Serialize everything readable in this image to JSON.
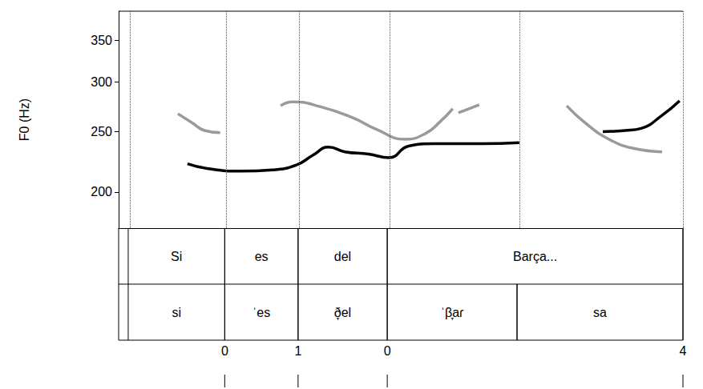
{
  "chart_data": {
    "type": "line",
    "y_label": "F0 (Hz)",
    "xlim": [
      0,
      1
    ],
    "ylim": [
      175,
      390
    ],
    "yticks": [
      200,
      250,
      300,
      350
    ],
    "log": "y",
    "grid": false,
    "tick_labels": "y",
    "series": [
      {
        "color": "#9a9a9a",
        "x": [
          0.105,
          0.131,
          0.152,
          0.18,
          0.23,
          0.287,
          0.308,
          0.358,
          0.415,
          0.457,
          0.507,
          0.543,
          0.571,
          0.592,
          0.597,
          0.602,
          0.621,
          0.639,
          0.713,
          0.794,
          0.827,
          0.869,
          0.912,
          0.963
        ],
        "values": [
          267,
          258,
          251,
          249,
          null,
          275,
          279,
          274,
          263,
          252,
          243,
          248,
          260,
          272,
          null,
          268,
          272,
          276,
          null,
          275,
          258,
          243,
          235,
          232
        ]
      },
      {
        "color": "#000000",
        "x": [
          0.122,
          0.159,
          0.216,
          0.273,
          0.315,
          0.344,
          0.372,
          0.401,
          0.443,
          0.479,
          0.514,
          0.557,
          0.642,
          0.71,
          0.784,
          0.858,
          0.898,
          0.926,
          0.962,
          0.994
        ],
        "values": [
          222,
          218,
          216,
          217,
          221,
          229,
          236,
          232,
          230,
          227,
          237,
          239,
          239,
          240,
          null,
          250,
          251,
          253,
          265,
          280
        ]
      }
    ],
    "tiers": [
      {
        "intervals": [
          {
            "start": 0.017,
            "end": 0.188,
            "text": "Si"
          },
          {
            "start": 0.188,
            "end": 0.318,
            "text": "es"
          },
          {
            "start": 0.318,
            "end": 0.476,
            "text": "del"
          },
          {
            "start": 0.476,
            "end": 1.0,
            "text": "Barça..."
          }
        ]
      },
      {
        "intervals": [
          {
            "start": 0.017,
            "end": 0.188,
            "text": "si"
          },
          {
            "start": 0.188,
            "end": 0.318,
            "text": "ˈes"
          },
          {
            "start": 0.318,
            "end": 0.476,
            "text": "ð̞el"
          },
          {
            "start": 0.476,
            "end": 0.706,
            "text": "ˈβ̞aɾ"
          },
          {
            "start": 0.706,
            "end": 1.0,
            "text": "sa"
          }
        ]
      },
      {
        "points": [
          {
            "time": 0.188,
            "label": 0
          },
          {
            "time": 0.318,
            "label": 1
          },
          {
            "time": 0.476,
            "label": 0
          },
          {
            "time": 1.0,
            "label": 4
          }
        ]
      }
    ]
  }
}
